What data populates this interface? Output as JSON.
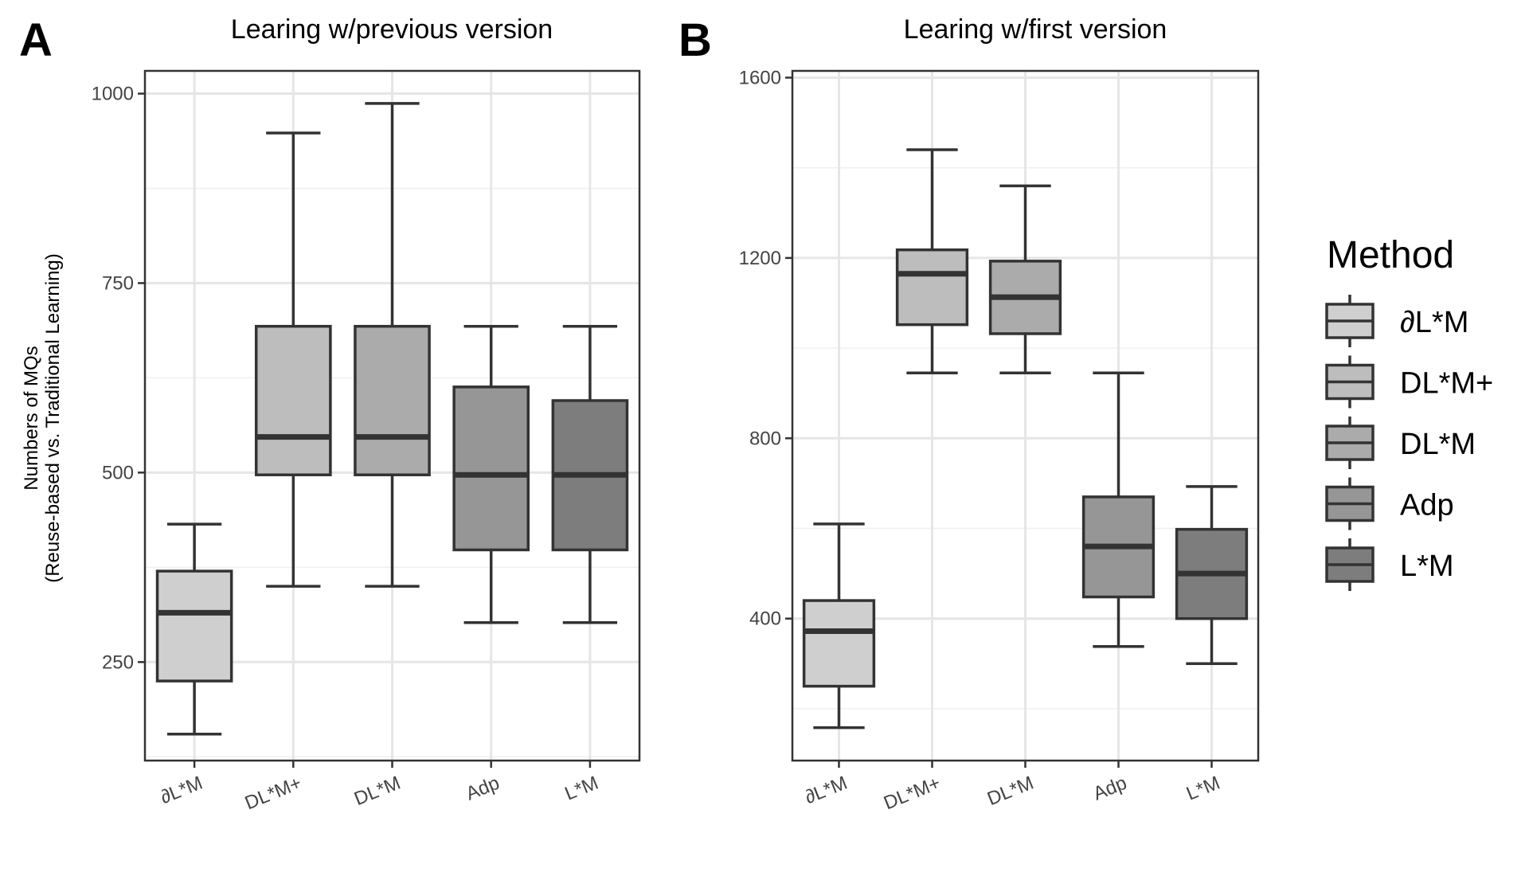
{
  "panel_labels": [
    "A",
    "B"
  ],
  "y_axis_label": [
    "Numbers of MQs",
    "(Reuse-based vs. Traditional Learning)"
  ],
  "legend": {
    "title": "Method",
    "items": [
      {
        "label": "∂L*M",
        "color": "#cfcfcf"
      },
      {
        "label": "DL*M+",
        "color": "#bdbdbd"
      },
      {
        "label": "DL*M",
        "color": "#ababab"
      },
      {
        "label": "Adp",
        "color": "#969696"
      },
      {
        "label": "L*M",
        "color": "#7d7d7d"
      }
    ]
  },
  "chart_data": [
    {
      "type": "boxplot",
      "title": "Learing w/previous version",
      "categories": [
        "∂L*M",
        "DL*M+",
        "DL*M",
        "Adp",
        "L*M"
      ],
      "ylim": [
        120,
        1030
      ],
      "yticks": [
        250,
        500,
        750,
        1000
      ],
      "grid": true,
      "series": [
        {
          "min": 155,
          "q1": 225,
          "median": 315,
          "q3": 370,
          "max": 432
        },
        {
          "min": 350,
          "q1": 497,
          "median": 547,
          "q3": 693,
          "max": 948
        },
        {
          "min": 350,
          "q1": 497,
          "median": 547,
          "q3": 693,
          "max": 987
        },
        {
          "min": 302,
          "q1": 398,
          "median": 497,
          "q3": 613,
          "max": 693
        },
        {
          "min": 302,
          "q1": 398,
          "median": 497,
          "q3": 595,
          "max": 693
        }
      ]
    },
    {
      "type": "boxplot",
      "title": "Learing w/first version",
      "categories": [
        "∂L*M",
        "DL*M+",
        "DL*M",
        "Adp",
        "L*M"
      ],
      "ylim": [
        85,
        1615
      ],
      "yticks": [
        400,
        800,
        1200,
        1600
      ],
      "grid": true,
      "series": [
        {
          "min": 158,
          "q1": 250,
          "median": 372,
          "q3": 440,
          "max": 610
        },
        {
          "min": 945,
          "q1": 1052,
          "median": 1165,
          "q3": 1218,
          "max": 1440
        },
        {
          "min": 945,
          "q1": 1032,
          "median": 1113,
          "q3": 1193,
          "max": 1360
        },
        {
          "min": 338,
          "q1": 448,
          "median": 560,
          "q3": 670,
          "max": 945
        },
        {
          "min": 300,
          "q1": 400,
          "median": 500,
          "q3": 598,
          "max": 693
        }
      ]
    }
  ]
}
